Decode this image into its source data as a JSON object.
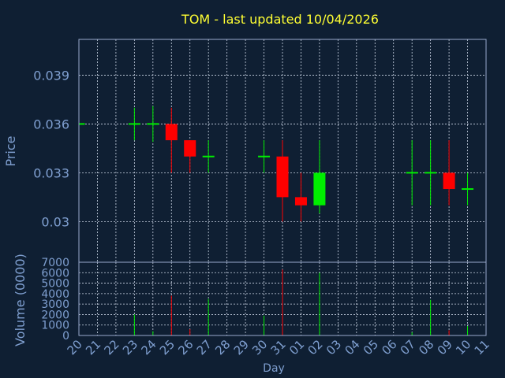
{
  "chart_data": {
    "type": "candlestick",
    "title": "TOM - last updated 10/04/2026",
    "xlabel": "Day",
    "colors": {
      "background": "#0f1f33",
      "title": "#ffff33",
      "axis_text": "#7f9fd0",
      "frame": "#99aacc",
      "grid": "#ccd6e6",
      "up": "#00ee00",
      "down": "#ff0000"
    },
    "x_tick_labels": [
      "20",
      "21",
      "22",
      "23",
      "24",
      "25",
      "26",
      "27",
      "28",
      "29",
      "30",
      "31",
      "01",
      "02",
      "03",
      "04",
      "05",
      "06",
      "07",
      "08",
      "09",
      "10",
      "11"
    ],
    "price_panel": {
      "ylabel": "Price",
      "ylim": [
        0.0275,
        0.0412
      ],
      "y_ticks": [
        0.03,
        0.033,
        0.036,
        0.039
      ],
      "y_tick_labels": [
        "0.03",
        "0.033",
        "0.036",
        "0.039"
      ]
    },
    "volume_panel": {
      "ylabel": "Volume (0000)",
      "ylim": [
        0,
        7000
      ],
      "y_ticks": [
        0,
        1000,
        2000,
        3000,
        4000,
        5000,
        6000,
        7000
      ],
      "y_tick_labels": [
        "0",
        "1000",
        "2000",
        "3000",
        "4000",
        "5000",
        "6000",
        "7000"
      ]
    },
    "candles": [
      {
        "day": "20",
        "open": 0.036,
        "high": 0.036,
        "low": 0.036,
        "close": 0.036,
        "volume": 0
      },
      {
        "day": "23",
        "open": 0.036,
        "high": 0.037,
        "low": 0.035,
        "close": 0.036,
        "volume": 2000
      },
      {
        "day": "24",
        "open": 0.036,
        "high": 0.0371,
        "low": 0.0349,
        "close": 0.036,
        "volume": 400
      },
      {
        "day": "25",
        "open": 0.036,
        "high": 0.037,
        "low": 0.033,
        "close": 0.035,
        "volume": 3800
      },
      {
        "day": "26",
        "open": 0.035,
        "high": 0.035,
        "low": 0.033,
        "close": 0.034,
        "volume": 600
      },
      {
        "day": "27",
        "open": 0.034,
        "high": 0.035,
        "low": 0.033,
        "close": 0.034,
        "volume": 3500
      },
      {
        "day": "30",
        "open": 0.034,
        "high": 0.035,
        "low": 0.033,
        "close": 0.034,
        "volume": 1900
      },
      {
        "day": "31",
        "open": 0.034,
        "high": 0.035,
        "low": 0.03,
        "close": 0.0315,
        "volume": 6300
      },
      {
        "day": "01",
        "open": 0.0315,
        "high": 0.033,
        "low": 0.03,
        "close": 0.031,
        "volume": 0
      },
      {
        "day": "02",
        "open": 0.031,
        "high": 0.035,
        "low": 0.0305,
        "close": 0.033,
        "volume": 6000
      },
      {
        "day": "07",
        "open": 0.033,
        "high": 0.035,
        "low": 0.031,
        "close": 0.033,
        "volume": 300
      },
      {
        "day": "08",
        "open": 0.033,
        "high": 0.035,
        "low": 0.031,
        "close": 0.033,
        "volume": 3400
      },
      {
        "day": "09",
        "open": 0.033,
        "high": 0.035,
        "low": 0.031,
        "close": 0.032,
        "volume": 500
      },
      {
        "day": "10",
        "open": 0.032,
        "high": 0.033,
        "low": 0.031,
        "close": 0.032,
        "volume": 900
      }
    ]
  }
}
